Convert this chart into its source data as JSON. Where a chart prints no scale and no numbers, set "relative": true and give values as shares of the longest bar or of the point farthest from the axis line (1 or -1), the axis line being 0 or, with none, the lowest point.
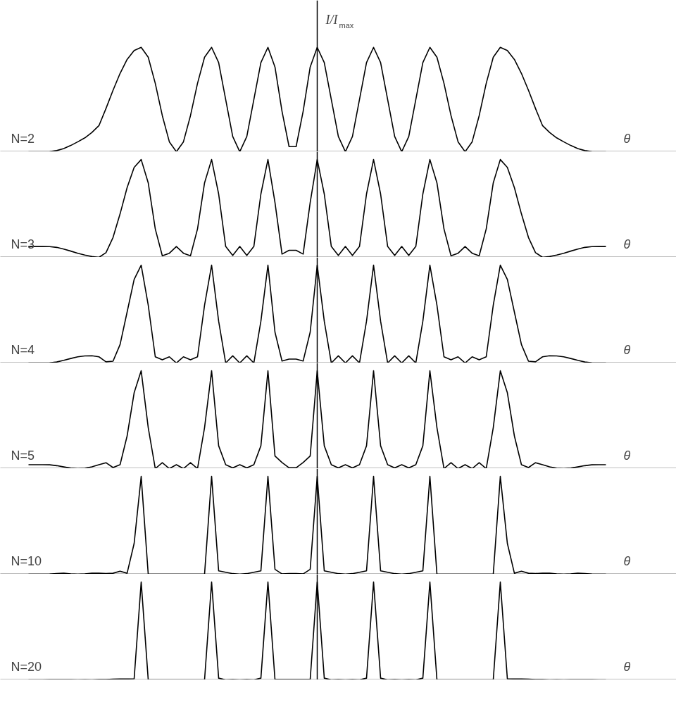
{
  "chart_data": [
    {
      "type": "line",
      "relative": true,
      "color": "#000000",
      "ylabel": "I/I$_{max}$",
      "xlabel": "θ",
      "annotations": [
        "N=2"
      ],
      "categories": [
        null,
        null,
        null,
        null,
        null,
        null,
        null,
        null,
        null,
        null,
        null,
        null,
        null,
        null,
        null,
        null,
        null,
        null,
        null,
        null,
        null,
        null,
        null,
        null,
        null,
        null,
        null,
        null,
        null,
        null,
        null,
        null,
        null,
        null,
        null,
        null,
        null,
        null,
        null,
        null,
        null,
        null,
        null,
        null,
        null,
        null,
        null,
        null,
        null,
        null,
        null,
        null,
        null,
        null,
        null,
        null,
        null,
        null,
        null,
        null,
        null,
        null,
        null,
        null,
        null,
        null,
        null,
        null,
        null,
        null,
        null,
        null,
        null,
        null,
        null,
        null,
        null,
        null,
        null,
        null,
        null,
        null,
        null
      ],
      "values": [
        0,
        0,
        0,
        0.001,
        0.011,
        0.031,
        0.06,
        0.095,
        0.133,
        0.185,
        0.25,
        0.414,
        0.588,
        0.75,
        0.884,
        0.969,
        1,
        0.905,
        0.655,
        0.346,
        0.095,
        0,
        0.095,
        0.346,
        0.655,
        0.905,
        1,
        0.854,
        0.5,
        0.146,
        0,
        0.146,
        0.5,
        0.854,
        1,
        0.811,
        0.387,
        0.049,
        0.049,
        0.387,
        0.811,
        1,
        0.854,
        0.5,
        0.146,
        0,
        0.146,
        0.5,
        0.854,
        1,
        0.854,
        0.5,
        0.146,
        0,
        0.146,
        0.5,
        0.854,
        1,
        0.905,
        0.655,
        0.346,
        0.095,
        0,
        0.095,
        0.346,
        0.655,
        0.905,
        1,
        0.969,
        0.884,
        0.75,
        0.588,
        0.414,
        0.25,
        0.185,
        0.133,
        0.095,
        0.06,
        0.031,
        0.011,
        0.001,
        0,
        0
      ]
    },
    {
      "type": "line",
      "relative": true,
      "color": "#000000",
      "xlabel": "θ",
      "annotations": [
        "N=3"
      ],
      "categories": [
        null,
        null,
        null,
        null,
        null,
        null,
        null,
        null,
        null,
        null,
        null,
        null,
        null,
        null,
        null,
        null,
        null,
        null,
        null,
        null,
        null,
        null,
        null,
        null,
        null,
        null,
        null,
        null,
        null,
        null,
        null,
        null,
        null,
        null,
        null,
        null,
        null,
        null,
        null,
        null,
        null,
        null,
        null,
        null,
        null,
        null,
        null,
        null,
        null,
        null,
        null,
        null,
        null,
        null,
        null,
        null,
        null,
        null,
        null,
        null,
        null,
        null,
        null,
        null,
        null,
        null,
        null,
        null,
        null,
        null,
        null,
        null,
        null,
        null,
        null,
        null,
        null,
        null,
        null,
        null,
        null,
        null,
        null
      ],
      "values": [
        0.111,
        0.111,
        0.111,
        0.11,
        0.102,
        0.085,
        0.064,
        0.042,
        0.024,
        0.008,
        0,
        0.048,
        0.203,
        0.444,
        0.713,
        0.92,
        1,
        0.762,
        0.291,
        0.016,
        0.042,
        0.111,
        0.042,
        0.016,
        0.291,
        0.762,
        1,
        0.648,
        0.111,
        0.019,
        0.111,
        0.019,
        0.111,
        0.648,
        1,
        0.56,
        0.033,
        0.072,
        0.072,
        0.033,
        0.56,
        1,
        0.648,
        0.111,
        0.019,
        0.111,
        0.019,
        0.111,
        0.648,
        1,
        0.648,
        0.111,
        0.019,
        0.111,
        0.019,
        0.111,
        0.648,
        1,
        0.762,
        0.291,
        0.016,
        0.042,
        0.111,
        0.042,
        0.016,
        0.291,
        0.762,
        1,
        0.92,
        0.713,
        0.444,
        0.203,
        0.048,
        0,
        0.008,
        0.024,
        0.042,
        0.064,
        0.085,
        0.102,
        0.11,
        0.111,
        0.111
      ]
    },
    {
      "type": "line",
      "relative": true,
      "color": "#000000",
      "xlabel": "θ",
      "annotations": [
        "N=4"
      ],
      "categories": [
        null,
        null,
        null,
        null,
        null,
        null,
        null,
        null,
        null,
        null,
        null,
        null,
        null,
        null,
        null,
        null,
        null,
        null,
        null,
        null,
        null,
        null,
        null,
        null,
        null,
        null,
        null,
        null,
        null,
        null,
        null,
        null,
        null,
        null,
        null,
        null,
        null,
        null,
        null,
        null,
        null,
        null,
        null,
        null,
        null,
        null,
        null,
        null,
        null,
        null,
        null,
        null,
        null,
        null,
        null,
        null,
        null,
        null,
        null,
        null,
        null,
        null,
        null,
        null,
        null,
        null,
        null,
        null,
        null,
        null,
        null,
        null,
        null,
        null,
        null,
        null,
        null,
        null,
        null,
        null,
        null,
        null,
        null
      ],
      "values": [
        0,
        0,
        0,
        0.001,
        0.01,
        0.027,
        0.046,
        0.063,
        0.072,
        0.074,
        0.063,
        0.012,
        0.018,
        0.188,
        0.52,
        0.854,
        1,
        0.592,
        0.063,
        0.033,
        0.063,
        0,
        0.063,
        0.033,
        0.063,
        0.592,
        1,
        0.427,
        0,
        0.073,
        0,
        0.073,
        0,
        0.427,
        1,
        0.315,
        0.02,
        0.04,
        0.04,
        0.02,
        0.315,
        1,
        0.427,
        0,
        0.073,
        0,
        0.073,
        0,
        0.427,
        1,
        0.427,
        0,
        0.073,
        0,
        0.073,
        0,
        0.427,
        1,
        0.592,
        0.063,
        0.033,
        0.063,
        0,
        0.063,
        0.033,
        0.063,
        0.592,
        1,
        0.854,
        0.52,
        0.188,
        0.018,
        0.012,
        0.063,
        0.074,
        0.072,
        0.063,
        0.046,
        0.027,
        0.01,
        0.001,
        0,
        0
      ]
    },
    {
      "type": "line",
      "relative": true,
      "color": "#000000",
      "xlabel": "θ",
      "annotations": [
        "N=5"
      ],
      "categories": [
        null,
        null,
        null,
        null,
        null,
        null,
        null,
        null,
        null,
        null,
        null,
        null,
        null,
        null,
        null,
        null,
        null,
        null,
        null,
        null,
        null,
        null,
        null,
        null,
        null,
        null,
        null,
        null,
        null,
        null,
        null,
        null,
        null,
        null,
        null,
        null,
        null,
        null,
        null,
        null,
        null,
        null,
        null,
        null,
        null,
        null,
        null,
        null,
        null,
        null,
        null,
        null,
        null,
        null,
        null,
        null,
        null,
        null,
        null,
        null,
        null,
        null,
        null,
        null,
        null,
        null,
        null,
        null,
        null,
        null,
        null,
        null,
        null,
        null,
        null,
        null,
        null,
        null,
        null,
        null,
        null,
        null,
        null
      ],
      "values": [
        0.04,
        0.04,
        0.04,
        0.039,
        0.03,
        0.017,
        0.005,
        0,
        0.004,
        0.018,
        0.04,
        0.06,
        0.011,
        0.04,
        0.333,
        0.775,
        1,
        0.419,
        0,
        0.061,
        0,
        0.04,
        0,
        0.061,
        0,
        0.419,
        1,
        0.233,
        0.04,
        0.007,
        0.04,
        0.007,
        0.04,
        0.233,
        1,
        0.129,
        0.062,
        0.008,
        0.008,
        0.062,
        0.129,
        1,
        0.233,
        0.04,
        0.007,
        0.04,
        0.007,
        0.04,
        0.233,
        1,
        0.233,
        0.04,
        0.007,
        0.04,
        0.007,
        0.04,
        0.233,
        1,
        0.419,
        0,
        0.061,
        0,
        0.04,
        0,
        0.061,
        0,
        0.419,
        1,
        0.775,
        0.333,
        0.04,
        0.011,
        0.06,
        0.04,
        0.018,
        0.004,
        0,
        0.005,
        0.017,
        0.03,
        0.039,
        0.04,
        0.04
      ]
    },
    {
      "type": "line",
      "relative": true,
      "color": "#000000",
      "xlabel": "θ",
      "annotations": [
        "N=10"
      ],
      "categories": [
        null,
        null,
        null,
        null,
        null,
        null,
        null,
        null,
        null,
        null,
        null,
        null,
        null,
        null,
        null,
        null,
        null,
        null,
        null,
        null,
        null,
        null,
        null,
        null,
        null,
        null,
        null,
        null,
        null,
        null,
        null,
        null,
        null,
        null,
        null,
        null,
        null,
        null,
        null,
        null,
        null,
        null,
        null,
        null,
        null,
        null,
        null,
        null,
        null,
        null,
        null,
        null,
        null,
        null,
        null,
        null,
        null,
        null,
        null,
        null,
        null,
        null,
        null,
        null,
        null,
        null,
        null,
        null,
        null,
        null,
        null,
        null,
        null,
        null,
        null,
        null,
        null,
        null,
        null,
        null,
        null,
        null,
        null
      ],
      "values": [
        0,
        0,
        0,
        0.001,
        0.007,
        0.01,
        0.004,
        0,
        0.004,
        0.011,
        0.01,
        0.007,
        0.01,
        0.03,
        0.01,
        0.315,
        1,
        0,
        0,
        0,
        0,
        0,
        0,
        0,
        0,
        0,
        1,
        0.034,
        0.02,
        0.006,
        0,
        0.006,
        0.02,
        0.034,
        1,
        0.05,
        0.003,
        0.007,
        0.007,
        0.003,
        0.05,
        1,
        0.034,
        0.02,
        0.006,
        0,
        0.006,
        0.02,
        0.034,
        1,
        0.034,
        0.02,
        0.006,
        0,
        0.006,
        0.02,
        0.034,
        1,
        0,
        0,
        0,
        0,
        0,
        0,
        0,
        0,
        0,
        1,
        0.315,
        0.01,
        0.03,
        0.01,
        0.007,
        0.01,
        0.011,
        0.004,
        0,
        0.004,
        0.01,
        0.007,
        0.001,
        0,
        0
      ]
    },
    {
      "type": "line",
      "relative": true,
      "color": "#000000",
      "xlabel": "θ",
      "annotations": [
        "N=20"
      ],
      "categories": [
        null,
        null,
        null,
        null,
        null,
        null,
        null,
        null,
        null,
        null,
        null,
        null,
        null,
        null,
        null,
        null,
        null,
        null,
        null,
        null,
        null,
        null,
        null,
        null,
        null,
        null,
        null,
        null,
        null,
        null,
        null,
        null,
        null,
        null,
        null,
        null,
        null,
        null,
        null,
        null,
        null,
        null,
        null,
        null,
        null,
        null,
        null,
        null,
        null,
        null,
        null,
        null,
        null,
        null,
        null,
        null,
        null,
        null,
        null,
        null,
        null,
        null,
        null,
        null,
        null,
        null,
        null,
        null,
        null,
        null,
        null,
        null,
        null,
        null,
        null,
        null,
        null,
        null,
        null,
        null,
        null,
        null,
        null
      ],
      "values": [
        0,
        0,
        0,
        0.001,
        0.002,
        0.001,
        0.002,
        0,
        0.002,
        0,
        0.003,
        0.004,
        0.006,
        0.008,
        0.009,
        0.011,
        1,
        0,
        0,
        0,
        0,
        0,
        0,
        0,
        0,
        0,
        1,
        0.017,
        0,
        0.003,
        0,
        0.003,
        0,
        0.017,
        1,
        0.003,
        0.003,
        0.003,
        0.003,
        0.003,
        0.003,
        1,
        0.017,
        0,
        0.003,
        0,
        0.003,
        0,
        0.017,
        1,
        0.017,
        0,
        0.003,
        0,
        0.003,
        0,
        0.017,
        1,
        0,
        0,
        0,
        0,
        0,
        0,
        0,
        0,
        0,
        1,
        0.011,
        0.009,
        0.008,
        0.006,
        0.004,
        0.003,
        0,
        0.002,
        0,
        0.002,
        0.001,
        0.002,
        0.001,
        0,
        0
      ]
    }
  ]
}
